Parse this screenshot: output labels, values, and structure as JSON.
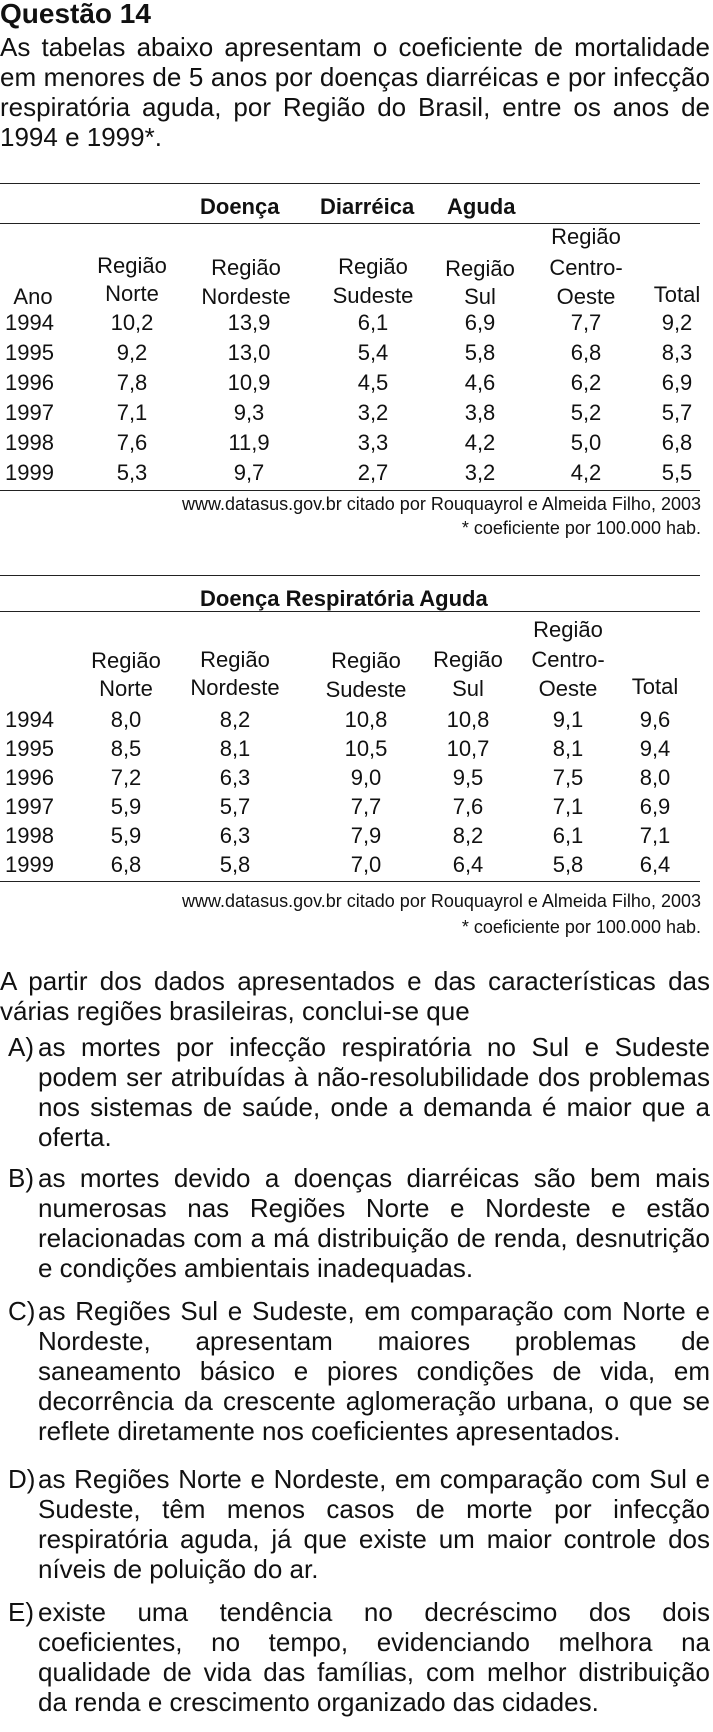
{
  "question": {
    "title": "Questão 14",
    "intro": "As tabelas abaixo apresentam o coeficiente de mortalidade em menores de 5 anos por doenças diarréicas e por infecção respiratória aguda, por Região do Brasil, entre os anos de 1994 e 1999*."
  },
  "table1": {
    "caption_parts": [
      "Doença",
      "Diarréica",
      "Aguda"
    ],
    "header_ano": "Ano",
    "header_regiao": "Região",
    "columns": [
      "Norte",
      "Nordeste",
      "Sudeste",
      "Sul",
      "Centro-",
      "Oeste"
    ],
    "header_total": "Total",
    "rows": [
      {
        "ano": "1994",
        "values": [
          "10,2",
          "13,9",
          "6,1",
          "6,9",
          "7,7",
          "9,2"
        ]
      },
      {
        "ano": "1995",
        "values": [
          "9,2",
          "13,0",
          "5,4",
          "5,8",
          "6,8",
          "8,3"
        ]
      },
      {
        "ano": "1996",
        "values": [
          "7,8",
          "10,9",
          "4,5",
          "4,6",
          "6,2",
          "6,9"
        ]
      },
      {
        "ano": "1997",
        "values": [
          "7,1",
          "9,3",
          "3,2",
          "3,8",
          "5,2",
          "5,7"
        ]
      },
      {
        "ano": "1998",
        "values": [
          "7,6",
          "11,9",
          "3,3",
          "4,2",
          "5,0",
          "6,8"
        ]
      },
      {
        "ano": "1999",
        "values": [
          "5,3",
          "9,7",
          "2,7",
          "3,2",
          "4,2",
          "5,5"
        ]
      }
    ],
    "source": "www.datasus.gov.br citado por Rouquayrol e Almeida Filho, 2003",
    "note": "* coeficiente por 100.000 hab."
  },
  "table2": {
    "caption": "Doença Respiratória Aguda",
    "header_regiao": "Região",
    "header_total": "Total",
    "rows": [
      {
        "ano": "1994",
        "values": [
          "8,0",
          "8,2",
          "10,8",
          "10,8",
          "9,1",
          "9,6"
        ]
      },
      {
        "ano": "1995",
        "values": [
          "8,5",
          "8,1",
          "10,5",
          "10,7",
          "8,1",
          "9,4"
        ]
      },
      {
        "ano": "1996",
        "values": [
          "7,2",
          "6,3",
          "9,0",
          "9,5",
          "7,5",
          "8,0"
        ]
      },
      {
        "ano": "1997",
        "values": [
          "5,9",
          "5,7",
          "7,7",
          "7,6",
          "7,1",
          "6,9"
        ]
      },
      {
        "ano": "1998",
        "values": [
          "5,9",
          "6,3",
          "7,9",
          "8,2",
          "6,1",
          "7,1"
        ]
      },
      {
        "ano": "1999",
        "values": [
          "6,8",
          "5,8",
          "7,0",
          "6,4",
          "5,8",
          "6,4"
        ]
      }
    ],
    "source": "www.datasus.gov.br citado por Rouquayrol e Almeida Filho, 2003",
    "note": "* coeficiente por 100.000 hab."
  },
  "stem": "A partir dos dados apresentados e das características das várias regiões brasileiras, conclui-se que",
  "options": [
    {
      "letter": "A)",
      "text": "as mortes por infecção respiratória no Sul e Sudeste podem ser atribuídas à não-resolubilidade dos problemas nos sistemas de saúde, onde a demanda é maior que a oferta."
    },
    {
      "letter": "B)",
      "text": "as mortes devido a doenças diarréicas são bem mais numerosas nas Regiões Norte e Nordeste e estão relacionadas com a má distribuição de renda, desnutrição e condições ambientais inadequadas."
    },
    {
      "letter": "C)",
      "text": "as Regiões Sul e Sudeste, em comparação com Norte e Nordeste, apresentam maiores problemas de saneamento básico e piores condições de vida, em decorrência da crescente aglomeração urbana, o que se reflete diretamente nos coeficientes apresentados."
    },
    {
      "letter": "D)",
      "text": "as Regiões Norte e Nordeste, em comparação com Sul e Sudeste, têm menos casos de morte por infecção respiratória aguda, já que existe um maior controle dos níveis de poluição do ar."
    },
    {
      "letter": "E)",
      "text": "existe uma tendência no decréscimo dos dois coeficientes, no tempo, evidenciando melhora na qualidade de vida das famílias, com melhor distribuição da renda e crescimento organizado das cidades."
    }
  ]
}
